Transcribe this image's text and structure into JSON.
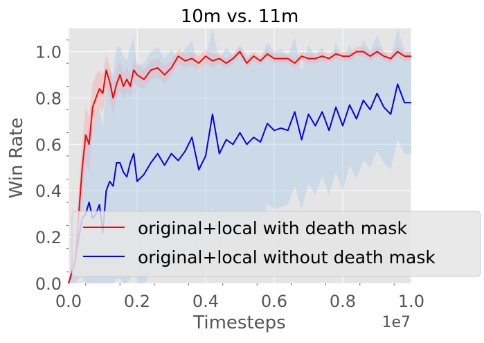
{
  "chart_data": {
    "type": "line",
    "title": "10m vs. 11m",
    "xlabel": "Timesteps",
    "ylabel": "Win Rate",
    "x_scale_label": "1e7",
    "xlim": [
      0,
      1.0
    ],
    "ylim": [
      0,
      1.1
    ],
    "x_ticks": [
      0.0,
      0.2,
      0.4,
      0.6,
      0.8,
      1.0
    ],
    "x_tick_labels": [
      "0.0",
      "0.2",
      "0.4",
      "0.6",
      "0.8",
      "1.0"
    ],
    "y_ticks": [
      0.0,
      0.2,
      0.4,
      0.6,
      0.8,
      1.0
    ],
    "y_tick_labels": [
      "0.0",
      "0.2",
      "0.4",
      "0.6",
      "0.8",
      "1.0"
    ],
    "grid": true,
    "legend_position": "lower-right",
    "background": "#e5e5e5",
    "series": [
      {
        "name": "original+local with death mask",
        "color": "#ff0000",
        "band_color": "#ff9a9a",
        "x": [
          0.0,
          0.01,
          0.02,
          0.03,
          0.04,
          0.05,
          0.06,
          0.07,
          0.08,
          0.09,
          0.1,
          0.11,
          0.12,
          0.13,
          0.14,
          0.15,
          0.16,
          0.17,
          0.18,
          0.19,
          0.2,
          0.22,
          0.24,
          0.26,
          0.28,
          0.3,
          0.32,
          0.34,
          0.36,
          0.38,
          0.4,
          0.42,
          0.44,
          0.46,
          0.48,
          0.5,
          0.52,
          0.54,
          0.56,
          0.58,
          0.6,
          0.62,
          0.64,
          0.66,
          0.68,
          0.7,
          0.72,
          0.74,
          0.76,
          0.78,
          0.8,
          0.82,
          0.84,
          0.86,
          0.88,
          0.9,
          0.92,
          0.94,
          0.96,
          0.98,
          1.0
        ],
        "values": [
          0.0,
          0.05,
          0.1,
          0.3,
          0.5,
          0.64,
          0.6,
          0.76,
          0.8,
          0.84,
          0.82,
          0.92,
          0.87,
          0.8,
          0.86,
          0.9,
          0.85,
          0.88,
          0.85,
          0.92,
          0.9,
          0.88,
          0.92,
          0.93,
          0.9,
          0.93,
          0.98,
          0.96,
          0.97,
          0.95,
          0.98,
          0.96,
          0.97,
          0.95,
          0.97,
          1.0,
          0.95,
          0.98,
          0.96,
          0.99,
          0.97,
          0.97,
          0.97,
          0.95,
          0.98,
          0.97,
          0.97,
          0.98,
          0.97,
          0.99,
          0.98,
          0.98,
          1.0,
          1.0,
          0.98,
          1.0,
          0.98,
          0.97,
          1.0,
          0.98,
          0.98
        ],
        "band_half_width": [
          0.0,
          0.02,
          0.05,
          0.1,
          0.12,
          0.12,
          0.12,
          0.1,
          0.1,
          0.08,
          0.08,
          0.07,
          0.07,
          0.07,
          0.06,
          0.06,
          0.06,
          0.05,
          0.05,
          0.05,
          0.05,
          0.04,
          0.04,
          0.04,
          0.04,
          0.03,
          0.03,
          0.03,
          0.03,
          0.03,
          0.03,
          0.03,
          0.02,
          0.02,
          0.02,
          0.02,
          0.02,
          0.02,
          0.02,
          0.02,
          0.02,
          0.02,
          0.02,
          0.02,
          0.02,
          0.02,
          0.02,
          0.02,
          0.02,
          0.02,
          0.02,
          0.02,
          0.02,
          0.02,
          0.02,
          0.02,
          0.02,
          0.02,
          0.02,
          0.02,
          0.02
        ]
      },
      {
        "name": "original+local without death mask",
        "color": "#0000ee",
        "band_color": "#a8c8e8",
        "x": [
          0.0,
          0.01,
          0.02,
          0.03,
          0.04,
          0.05,
          0.06,
          0.07,
          0.08,
          0.09,
          0.1,
          0.11,
          0.12,
          0.13,
          0.14,
          0.15,
          0.16,
          0.17,
          0.18,
          0.19,
          0.2,
          0.22,
          0.24,
          0.26,
          0.28,
          0.3,
          0.32,
          0.34,
          0.36,
          0.38,
          0.4,
          0.42,
          0.44,
          0.46,
          0.48,
          0.5,
          0.52,
          0.54,
          0.56,
          0.58,
          0.6,
          0.62,
          0.64,
          0.66,
          0.68,
          0.7,
          0.72,
          0.74,
          0.76,
          0.78,
          0.8,
          0.82,
          0.84,
          0.86,
          0.88,
          0.9,
          0.92,
          0.94,
          0.96,
          0.98,
          1.0
        ],
        "values": [
          0.0,
          0.05,
          0.1,
          0.2,
          0.28,
          0.3,
          0.35,
          0.28,
          0.3,
          0.34,
          0.22,
          0.4,
          0.44,
          0.42,
          0.52,
          0.52,
          0.48,
          0.46,
          0.52,
          0.56,
          0.44,
          0.47,
          0.52,
          0.56,
          0.51,
          0.56,
          0.53,
          0.57,
          0.63,
          0.49,
          0.55,
          0.73,
          0.56,
          0.62,
          0.6,
          0.65,
          0.6,
          0.63,
          0.61,
          0.69,
          0.66,
          0.67,
          0.66,
          0.74,
          0.62,
          0.73,
          0.68,
          0.74,
          0.66,
          0.76,
          0.68,
          0.77,
          0.71,
          0.79,
          0.75,
          0.82,
          0.76,
          0.73,
          0.86,
          0.78,
          0.78
        ],
        "band_half_width": [
          0.0,
          0.05,
          0.1,
          0.18,
          0.25,
          0.3,
          0.35,
          0.38,
          0.4,
          0.42,
          0.45,
          0.46,
          0.48,
          0.48,
          0.5,
          0.5,
          0.5,
          0.5,
          0.5,
          0.5,
          0.5,
          0.48,
          0.48,
          0.46,
          0.46,
          0.45,
          0.44,
          0.44,
          0.42,
          0.42,
          0.42,
          0.4,
          0.4,
          0.4,
          0.38,
          0.38,
          0.38,
          0.36,
          0.36,
          0.35,
          0.34,
          0.34,
          0.32,
          0.32,
          0.3,
          0.3,
          0.3,
          0.28,
          0.28,
          0.28,
          0.28,
          0.26,
          0.26,
          0.26,
          0.25,
          0.25,
          0.24,
          0.24,
          0.24,
          0.22,
          0.22
        ]
      }
    ]
  }
}
